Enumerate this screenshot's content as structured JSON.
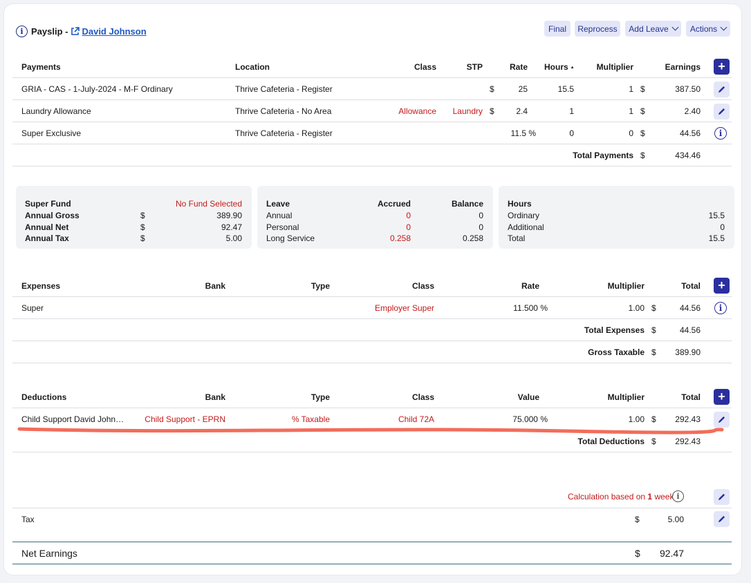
{
  "header": {
    "title": "Payslip -",
    "employee_link": "David Johnson",
    "buttons": {
      "final": "Final",
      "reprocess": "Reprocess",
      "add_leave": "Add Leave",
      "actions": "Actions"
    }
  },
  "payments": {
    "headers": {
      "name": "Payments",
      "location": "Location",
      "class": "Class",
      "stp": "STP",
      "rate": "Rate",
      "hours": "Hours",
      "sort_indicator": "▲",
      "multiplier": "Multiplier",
      "earnings": "Earnings"
    },
    "rows": [
      {
        "name": "GRIA - CAS - 1-July-2024 - M-F Ordinary",
        "location": "Thrive Cafeteria - Register",
        "class": "",
        "stp": "",
        "rate_currency": "$",
        "rate": "25",
        "hours": "15.5",
        "multiplier": "1",
        "currency": "$",
        "earnings": "387.50"
      },
      {
        "name": "Laundry Allowance",
        "location": "Thrive Cafeteria - No Area",
        "class": "Allowance",
        "stp": "Laundry",
        "rate_currency": "$",
        "rate": "2.4",
        "hours": "1",
        "multiplier": "1",
        "currency": "$",
        "earnings": "2.40"
      },
      {
        "name": "Super Exclusive",
        "location": "Thrive Cafeteria - Register",
        "class": "",
        "stp": "",
        "rate_currency": "",
        "rate": "11.5 %",
        "hours": "0",
        "multiplier": "0",
        "currency": "$",
        "earnings": "44.56"
      }
    ],
    "total_label": "Total Payments",
    "total_currency": "$",
    "total": "434.46"
  },
  "summary": {
    "super": {
      "fund_label": "Super Fund",
      "fund_value": "No Fund Selected",
      "gross_label": "Annual Gross",
      "gross_currency": "$",
      "gross": "389.90",
      "net_label": "Annual Net",
      "net_currency": "$",
      "net": "92.47",
      "tax_label": "Annual Tax",
      "tax_currency": "$",
      "tax": "5.00"
    },
    "leave": {
      "header": "Leave",
      "accrued_header": "Accrued",
      "balance_header": "Balance",
      "rows": [
        {
          "label": "Annual",
          "accrued": "0",
          "balance": "0"
        },
        {
          "label": "Personal",
          "accrued": "0",
          "balance": "0"
        },
        {
          "label": "Long Service",
          "accrued": "0.258",
          "balance": "0.258"
        }
      ]
    },
    "hours": {
      "header": "Hours",
      "rows": [
        {
          "label": "Ordinary",
          "value": "15.5"
        },
        {
          "label": "Additional",
          "value": "0"
        },
        {
          "label": "Total",
          "value": "15.5"
        }
      ]
    }
  },
  "expenses": {
    "headers": {
      "name": "Expenses",
      "bank": "Bank",
      "type": "Type",
      "class": "Class",
      "rate": "Rate",
      "multiplier": "Multiplier",
      "total": "Total"
    },
    "rows": [
      {
        "name": "Super",
        "bank": "",
        "type": "",
        "class": "Employer Super",
        "rate": "11.500 %",
        "multiplier": "1.00",
        "currency": "$",
        "total": "44.56"
      }
    ],
    "total_label": "Total Expenses",
    "total_currency": "$",
    "total": "44.56",
    "gross_label": "Gross Taxable",
    "gross_currency": "$",
    "gross": "389.90"
  },
  "deductions": {
    "headers": {
      "name": "Deductions",
      "bank": "Bank",
      "type": "Type",
      "class": "Class",
      "value": "Value",
      "multiplier": "Multiplier",
      "total": "Total"
    },
    "rows": [
      {
        "name": "Child Support David John…",
        "bank": "Child Support - EPRN",
        "type": "% Taxable",
        "class": "Child 72A",
        "value": "75.000 %",
        "multiplier": "1.00",
        "currency": "$",
        "total": "292.43"
      }
    ],
    "total_label": "Total Deductions",
    "total_currency": "$",
    "total": "292.43"
  },
  "tax": {
    "calc_prefix": "Calculation based on",
    "calc_count": "1",
    "calc_suffix": "week",
    "label": "Tax",
    "currency": "$",
    "value": "5.00"
  },
  "net": {
    "label": "Net Earnings",
    "currency": "$",
    "value": "92.47"
  },
  "colors": {
    "accent": "#2b2f9e",
    "red": "#c41a1a",
    "annotation": "#f26d5b",
    "link": "#1d58c5"
  }
}
